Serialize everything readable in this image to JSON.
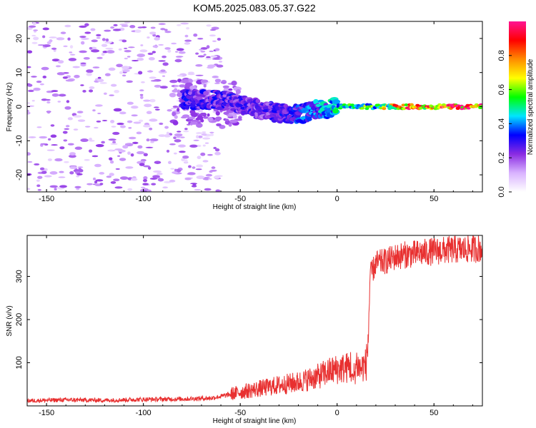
{
  "title": "KOM5.2025.083.05.37.G22",
  "chart_data": [
    {
      "type": "heatmap",
      "xlabel": "Height of straight line (km)",
      "ylabel": "Frequency (Hz)",
      "xlim": [
        -160,
        75
      ],
      "ylim": [
        -25,
        25
      ],
      "xticks": [
        -150,
        -100,
        -50,
        0,
        50
      ],
      "yticks": [
        -20,
        -10,
        0,
        10,
        20
      ],
      "xtick_labels": [
        "-150",
        "-100",
        "-50",
        "0",
        "50"
      ],
      "ytick_labels": [
        "-20",
        "-10",
        "0",
        "10",
        "20"
      ],
      "grid": false,
      "colorbar": {
        "label": "Normalized spectral amplitude",
        "range": [
          0,
          1
        ],
        "ticks": [
          0.0,
          0.2,
          0.4,
          0.6,
          0.8
        ],
        "tick_labels": [
          "0.0",
          "0.2",
          "0.4",
          "0.6",
          "0.8"
        ],
        "colors": [
          "#ffffff",
          "#d9b3ff",
          "#8a2be2",
          "#0000ff",
          "#00e5ff",
          "#00ff00",
          "#ffff00",
          "#ff8c00",
          "#ff0000",
          "#ff1493"
        ]
      },
      "ridge": {
        "description_points_x": [
          -60,
          -50,
          -40,
          -30,
          -20,
          -10,
          0,
          10,
          20,
          30,
          40,
          50,
          60,
          75
        ],
        "frequency_hz": [
          2,
          1,
          -1,
          -2,
          -2,
          -1,
          0,
          0,
          0,
          0,
          0,
          0,
          0,
          0
        ],
        "amplitude": [
          0.3,
          0.3,
          0.25,
          0.3,
          0.35,
          0.4,
          0.5,
          0.55,
          0.6,
          0.8,
          0.9,
          0.95,
          1.0,
          1.0
        ]
      }
    },
    {
      "type": "line",
      "xlabel": "Height of straight line (km)",
      "ylabel": "SNR (v/v)",
      "xlim": [
        -160,
        75
      ],
      "ylim": [
        0,
        395
      ],
      "xticks": [
        -150,
        -100,
        -50,
        0,
        50
      ],
      "yticks": [
        100,
        200,
        300
      ],
      "xtick_labels": [
        "-150",
        "-100",
        "-50",
        "0",
        "50"
      ],
      "ytick_labels": [
        "100",
        "200",
        "300"
      ],
      "color": "#e83030",
      "series": [
        {
          "x": [
            -160,
            -140,
            -120,
            -100,
            -80,
            -65,
            -60,
            -50,
            -40,
            -30,
            -20,
            -10,
            -5,
            0,
            5,
            7,
            8,
            10,
            12,
            14,
            15,
            16,
            17,
            20,
            25,
            30,
            35,
            40,
            45,
            50,
            55,
            60,
            65,
            70,
            75
          ],
          "values": [
            12,
            14,
            13,
            15,
            16,
            18,
            22,
            32,
            40,
            48,
            55,
            68,
            78,
            85,
            88,
            95,
            55,
            100,
            85,
            95,
            95,
            150,
            300,
            330,
            335,
            345,
            350,
            352,
            355,
            358,
            360,
            362,
            362,
            364,
            365
          ]
        }
      ]
    }
  ]
}
